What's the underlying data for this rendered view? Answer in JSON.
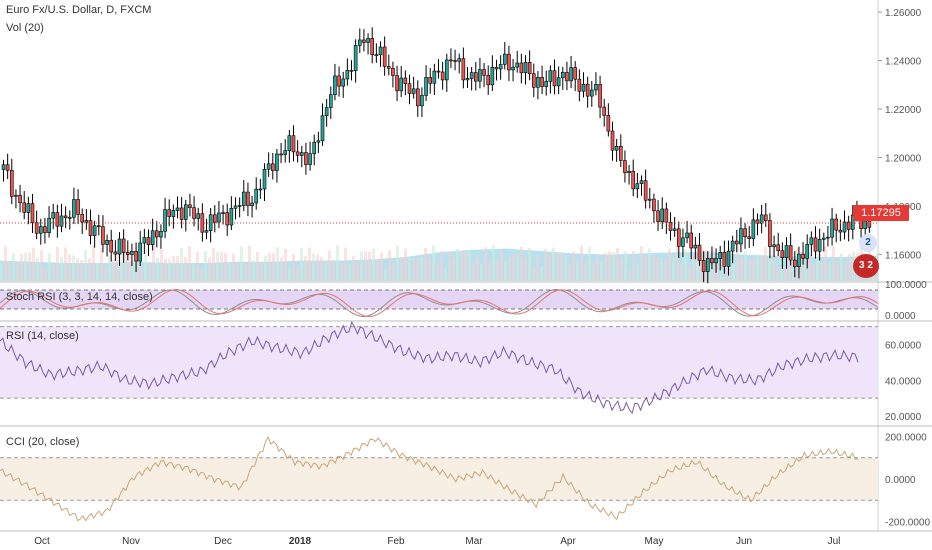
{
  "header": {
    "title": "Euro Fx/U.S. Dollar, D, FXCM",
    "volume_label": "Vol (20)"
  },
  "price_axis": {
    "ticks": [
      "1.26000",
      "1.24000",
      "1.22000",
      "1.20000",
      "1.18000",
      "1.16000"
    ],
    "last_price": "1.17295"
  },
  "stoch_rsi": {
    "label": "Stoch RSI (3, 3, 14, 14, close)",
    "ticks": [
      "100.0000",
      "0.0000"
    ]
  },
  "rsi": {
    "label": "RSI (14, close)",
    "ticks": [
      "60.0000",
      "40.0000",
      "20.0000"
    ]
  },
  "cci": {
    "label": "CCI (20, close)",
    "ticks": [
      "200.0000",
      "0.0000",
      "-200.0000"
    ]
  },
  "time_axis": {
    "labels": [
      "Oct",
      "Nov",
      "Dec",
      "2018",
      "Feb",
      "Mar",
      "Apr",
      "May",
      "Jun",
      "Jul"
    ]
  },
  "events": {
    "badge_1": "2",
    "badge_2": "3 2"
  },
  "colors": {
    "up": "#26a69a",
    "down": "#ef5350",
    "volume": "#7ec8e3",
    "stoch_band": "#e6d6f5",
    "rsi_band": "#f0e4fb",
    "cci_band": "#f7efe4",
    "price_tag": "#e53935"
  },
  "chart_data": {
    "type": "candlestick",
    "title": "Euro Fx/U.S. Dollar, D, FXCM",
    "price_range": [
      1.149,
      1.265
    ],
    "x_labels": [
      "Oct",
      "Nov",
      "Dec",
      "2018",
      "Feb",
      "Mar",
      "Apr",
      "May",
      "Jun",
      "Jul"
    ],
    "close_series": [
      1.195,
      1.18,
      1.17,
      1.175,
      1.178,
      1.17,
      1.163,
      1.16,
      1.165,
      1.175,
      1.18,
      1.172,
      1.175,
      1.18,
      1.185,
      1.2,
      1.205,
      1.198,
      1.225,
      1.235,
      1.25,
      1.24,
      1.23,
      1.225,
      1.235,
      1.24,
      1.232,
      1.235,
      1.24,
      1.235,
      1.23,
      1.235,
      1.23,
      1.225,
      1.2,
      1.19,
      1.18,
      1.17,
      1.165,
      1.155,
      1.16,
      1.168,
      1.175,
      1.16,
      1.158,
      1.165,
      1.17,
      1.174,
      1.17295
    ],
    "volume_ma": [
      1.7,
      1.6,
      1.5,
      1.5,
      1.6,
      1.5,
      1.5,
      1.6,
      1.6,
      1.7,
      1.7,
      1.8,
      2.0,
      2.4,
      2.6,
      2.7,
      2.5,
      2.3,
      2.2,
      2.3,
      2.4,
      2.4,
      2.2,
      2.1,
      2.0,
      2.0,
      2.1
    ],
    "stoch_rsi_range": [
      0,
      100
    ],
    "rsi_values": [
      62,
      50,
      43,
      45,
      48,
      40,
      38,
      42,
      45,
      55,
      62,
      58,
      55,
      64,
      70,
      63,
      56,
      52,
      54,
      50,
      56,
      50,
      46,
      33,
      27,
      24,
      30,
      38,
      46,
      41,
      40,
      48,
      52,
      54,
      53
    ],
    "rsi_range": [
      15,
      72
    ],
    "rsi_bands": [
      70,
      30
    ],
    "cci_values": [
      40,
      -30,
      -110,
      -190,
      -150,
      10,
      80,
      50,
      0,
      -40,
      190,
      80,
      60,
      120,
      190,
      110,
      60,
      0,
      30,
      -50,
      -120,
      10,
      -120,
      -180,
      -60,
      40,
      80,
      -30,
      -100,
      20,
      110,
      130,
      100
    ],
    "cci_range": [
      -240,
      240
    ],
    "cci_bands": [
      100,
      -100
    ]
  }
}
